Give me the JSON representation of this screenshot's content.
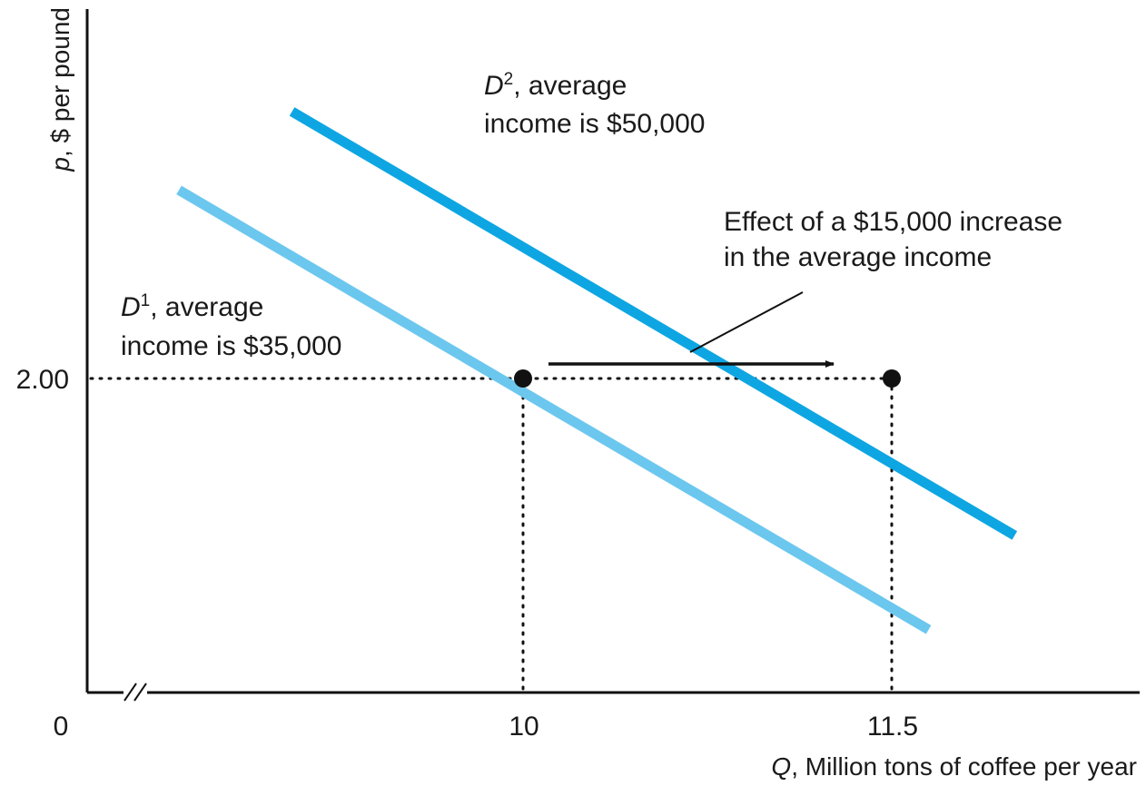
{
  "chart_data": {
    "type": "line",
    "xlabel_var": "Q",
    "xlabel_text": ", Million tons of coffee per year",
    "ylabel_var": "p",
    "ylabel_text": ", $ per pound",
    "x_ticks": [
      "0",
      "10",
      "11.5"
    ],
    "y_ticks": [
      "2.00"
    ],
    "axis_break": true,
    "grid": false,
    "series": [
      {
        "name_var": "D",
        "name_sup": "1",
        "name_rest": ", average",
        "name_line2": "income is $35,000",
        "color": "#6cc7ee",
        "points": [
          [
            8.6,
            3.2
          ],
          [
            11.65,
            0.4
          ]
        ]
      },
      {
        "name_var": "D",
        "name_sup": "2",
        "name_rest": ", average",
        "name_line2": "income is $50,000",
        "color": "#0ea6e2",
        "points": [
          [
            9.06,
            3.7
          ],
          [
            12.0,
            1.0
          ]
        ]
      }
    ],
    "points": [
      {
        "x": 10,
        "y": 2.0
      },
      {
        "x": 11.5,
        "y": 2.0
      }
    ],
    "annotation_line1": "Effect of a $15,000 increase",
    "annotation_line2": "in the average income"
  }
}
